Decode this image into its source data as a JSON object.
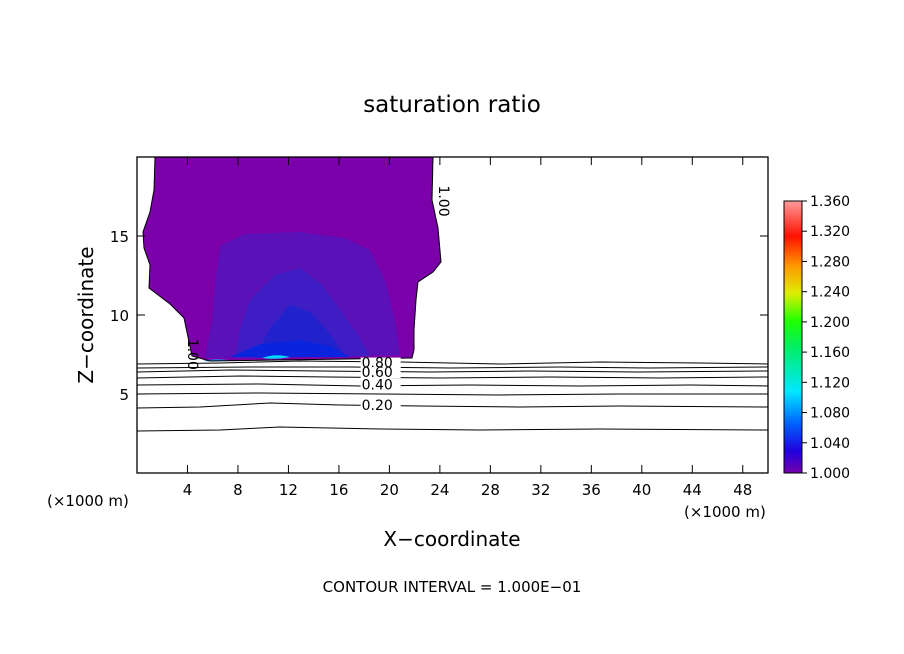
{
  "chart_data": {
    "type": "heatmap",
    "title": "saturation ratio",
    "xlabel": "X−coordinate",
    "ylabel": "Z−coordinate",
    "x_unit_left": "(×1000 m)",
    "x_unit_right": "(×1000 m)",
    "xlim": [
      0,
      50
    ],
    "ylim": [
      0,
      20
    ],
    "x_ticks": [
      4,
      8,
      12,
      16,
      20,
      24,
      28,
      32,
      36,
      40,
      44,
      48
    ],
    "y_ticks": [
      5,
      10,
      15
    ],
    "footer": "CONTOUR INTERVAL = 1.000E−01",
    "colorbar": {
      "min": 1.0,
      "max": 1.36,
      "labels": [
        "1.360",
        "1.320",
        "1.280",
        "1.240",
        "1.200",
        "1.160",
        "1.120",
        "1.080",
        "1.040",
        "1.000"
      ]
    },
    "contour_labels": [
      {
        "text": "1.00",
        "x": 24.1,
        "y": 18.2,
        "rot": 90
      },
      {
        "text": "1.00",
        "x": 4.2,
        "y": 8.5,
        "rot": 90
      },
      {
        "text": "0.80",
        "x": 17.8,
        "y": 6.8,
        "rot": 0
      },
      {
        "text": "0.60",
        "x": 17.8,
        "y": 6.2,
        "rot": 0
      },
      {
        "text": "0.40",
        "x": 17.8,
        "y": 5.4,
        "rot": 0
      },
      {
        "text": "0.20",
        "x": 17.8,
        "y": 4.1,
        "rot": 0
      }
    ]
  }
}
